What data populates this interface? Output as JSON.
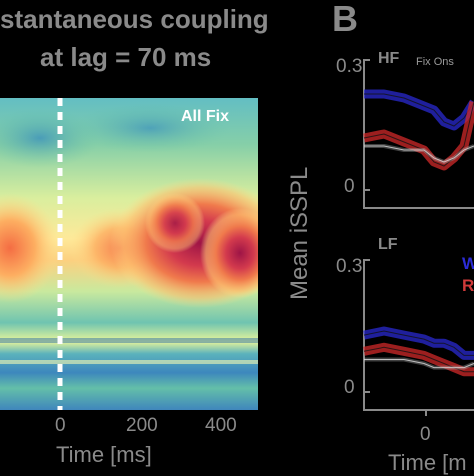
{
  "panel_a": {
    "title_line1": "stantaneous coupling",
    "title_line2": "at lag = 70 ms",
    "inset_label": "All Fix",
    "x_ticks": [
      "0",
      "200",
      "400"
    ],
    "xlabel": "Time [ms]"
  },
  "panel_b": {
    "letter": "B",
    "ylabel": "Mean  iSSPL",
    "xlabel": "Time [m",
    "x_tick": "0",
    "top": {
      "label": "HF",
      "annotation": "Fix Ons",
      "y_ticks": [
        "0.3",
        "0"
      ]
    },
    "bottom": {
      "label": "LF",
      "y_ticks": [
        "0.3",
        "0"
      ]
    },
    "legend": [
      {
        "text": "W",
        "color": "#2b2bd6"
      },
      {
        "text": "R",
        "color": "#d03a3a"
      }
    ]
  },
  "colors": {
    "background": "#000000",
    "text": "#8a8a8a",
    "blue_series": "#2a2ad0",
    "red_series": "#d02a2a",
    "gray_series": "#bbbbbb"
  },
  "chart_data": [
    {
      "type": "heatmap",
      "title": "stantaneous coupling at lag = 70 ms",
      "xlabel": "Time [ms]",
      "x_ticks": [
        0,
        200,
        400
      ],
      "annotation": "All Fix",
      "colormap": "Spectral_r"
    },
    {
      "type": "line",
      "panel": "HF",
      "ylim": [
        0,
        0.3
      ],
      "y_ticks": [
        0.3,
        0
      ],
      "x": [
        -120,
        -80,
        -40,
        0,
        20,
        40,
        60,
        80,
        100
      ],
      "series": [
        {
          "values": [
            0.24,
            0.24,
            0.23,
            0.21,
            0.2,
            0.17,
            0.16,
            0.18,
            0.22
          ],
          "color": "#2a2ad0"
        },
        {
          "values": [
            0.13,
            0.14,
            0.12,
            0.1,
            0.07,
            0.06,
            0.08,
            0.11,
            0.22
          ],
          "color": "#d02a2a"
        },
        {
          "values": [
            0.11,
            0.11,
            0.1,
            0.1,
            0.08,
            0.07,
            0.08,
            0.1,
            0.11
          ],
          "color": "#bbbbbb"
        }
      ]
    },
    {
      "type": "line",
      "panel": "LF",
      "ylim": [
        0,
        0.3
      ],
      "y_ticks": [
        0.3,
        0
      ],
      "x": [
        -120,
        -80,
        -40,
        0,
        20,
        40,
        60,
        80,
        100
      ],
      "series": [
        {
          "values": [
            0.14,
            0.15,
            0.14,
            0.13,
            0.12,
            0.12,
            0.11,
            0.09,
            0.09
          ],
          "color": "#2a2ad0"
        },
        {
          "values": [
            0.1,
            0.11,
            0.1,
            0.09,
            0.08,
            0.07,
            0.06,
            0.05,
            0.05
          ],
          "color": "#d02a2a"
        },
        {
          "values": [
            0.08,
            0.08,
            0.08,
            0.07,
            0.06,
            0.06,
            0.06,
            0.06,
            0.07
          ],
          "color": "#bbbbbb"
        }
      ]
    }
  ]
}
